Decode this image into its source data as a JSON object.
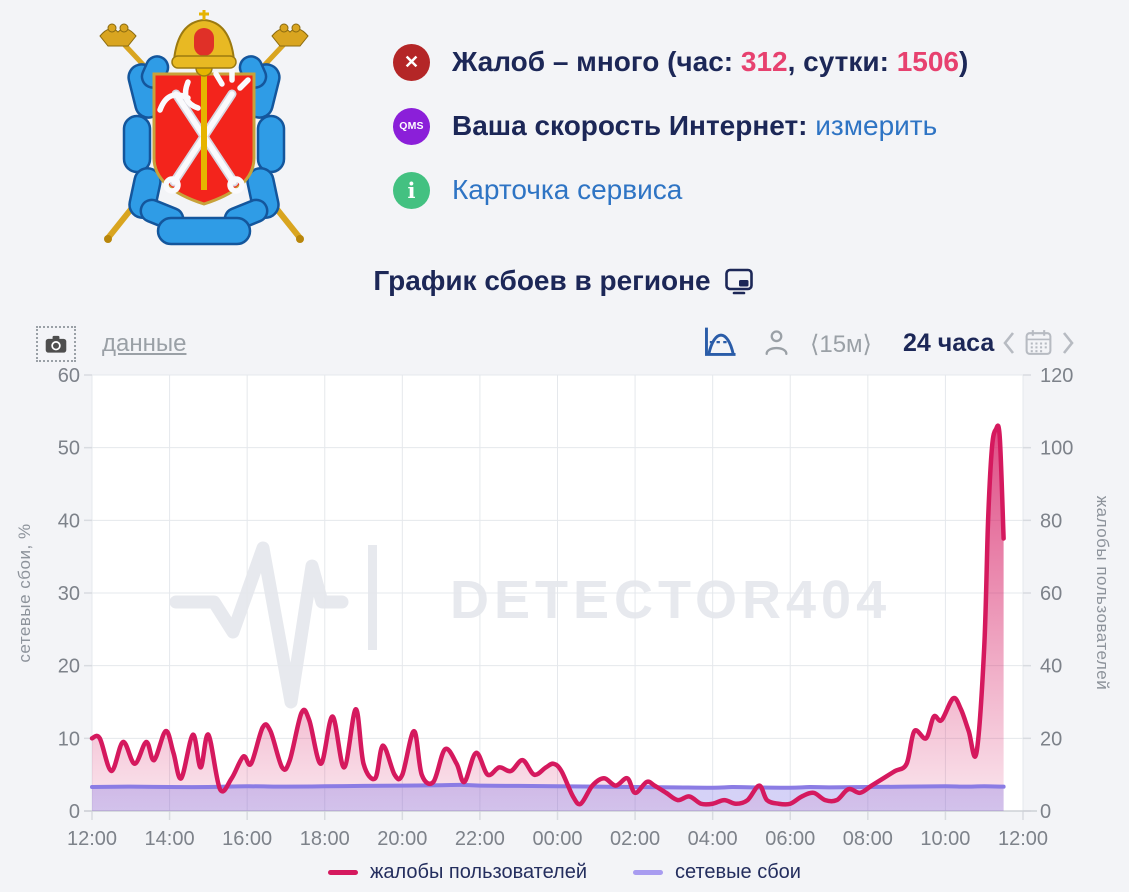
{
  "status": {
    "complaints": {
      "prefix": "Жалоб – много (час: ",
      "hour": "312",
      "mid": ", сутки: ",
      "day": "1506",
      "suffix": ")",
      "badge_icon": "✕"
    },
    "speed": {
      "label": "Ваша скорость Интернет: ",
      "link": "измерить",
      "badge": "QMS"
    },
    "card": {
      "link": "Карточка сервиса",
      "badge": "i"
    }
  },
  "controls": {
    "data_link": "данные",
    "interval": "⟨15м⟩",
    "range": "24 часа"
  },
  "legend": [
    {
      "label": "жалобы пользователей",
      "color": "#d5195e"
    },
    {
      "label": "сетевые сбои",
      "color": "#a89cf0"
    }
  ],
  "colors": {
    "navy": "#1c2757",
    "pink_accent": "#e7416f",
    "link_blue": "#2e74c4",
    "muted_gray": "#9aa0a6",
    "badge_red": "#b42627",
    "badge_purple": "#8b1fd9",
    "badge_green": "#43c181",
    "page_bg": "#f3f4f7",
    "plot_bg": "#ffffff",
    "grid": "#e5e8ec",
    "watermark": "#e7e9ee"
  },
  "chart_data": {
    "type": "line",
    "title": "График сбоев в регионе",
    "watermark": "DETECTOR404",
    "x_unit": "hours since 12:00",
    "x_labels": [
      "12:00",
      "14:00",
      "16:00",
      "18:00",
      "20:00",
      "22:00",
      "00:00",
      "02:00",
      "04:00",
      "06:00",
      "08:00",
      "10:00",
      "12:00"
    ],
    "left_axis": {
      "label": "сетевые сбои, %",
      "range": [
        0,
        60
      ],
      "ticks": [
        0,
        10,
        20,
        30,
        40,
        50,
        60
      ]
    },
    "right_axis": {
      "label": "жалобы пользователей",
      "range": [
        0,
        120
      ],
      "ticks": [
        0,
        20,
        40,
        60,
        80,
        100,
        120
      ]
    },
    "grid": true,
    "legend_position": "bottom",
    "series": [
      {
        "id": "complaints",
        "name": "жалобы пользователей",
        "axis": "right",
        "color": "#d5195e",
        "stroke_width": 4.5,
        "fill_top": "rgba(213,22,95,0.85)",
        "fill_bottom": "rgba(213,22,95,0.10)",
        "points": [
          [
            0,
            20
          ],
          [
            0.2,
            20
          ],
          [
            0.5,
            11
          ],
          [
            0.8,
            19
          ],
          [
            1.1,
            13
          ],
          [
            1.4,
            19
          ],
          [
            1.6,
            14
          ],
          [
            1.9,
            22
          ],
          [
            2.1,
            16
          ],
          [
            2.3,
            9
          ],
          [
            2.6,
            21
          ],
          [
            2.8,
            12
          ],
          [
            3.0,
            21
          ],
          [
            3.3,
            6
          ],
          [
            3.6,
            9
          ],
          [
            3.9,
            15
          ],
          [
            4.1,
            13
          ],
          [
            4.4,
            23
          ],
          [
            4.6,
            22
          ],
          [
            4.9,
            12
          ],
          [
            5.1,
            14
          ],
          [
            5.4,
            27
          ],
          [
            5.6,
            25
          ],
          [
            5.9,
            13
          ],
          [
            6.2,
            26
          ],
          [
            6.5,
            12
          ],
          [
            6.8,
            28
          ],
          [
            7.0,
            13
          ],
          [
            7.3,
            9
          ],
          [
            7.5,
            18
          ],
          [
            7.8,
            10
          ],
          [
            8.0,
            10
          ],
          [
            8.3,
            22
          ],
          [
            8.5,
            10
          ],
          [
            8.8,
            8
          ],
          [
            9.1,
            17
          ],
          [
            9.4,
            13
          ],
          [
            9.6,
            8
          ],
          [
            9.9,
            16
          ],
          [
            10.2,
            10
          ],
          [
            10.5,
            12
          ],
          [
            10.8,
            11
          ],
          [
            11.1,
            14
          ],
          [
            11.4,
            10
          ],
          [
            11.7,
            12
          ],
          [
            11.9,
            13
          ],
          [
            12.1,
            11
          ],
          [
            12.4,
            4
          ],
          [
            12.6,
            2
          ],
          [
            12.9,
            7
          ],
          [
            13.2,
            9
          ],
          [
            13.5,
            7
          ],
          [
            13.8,
            9
          ],
          [
            14.0,
            5
          ],
          [
            14.3,
            8
          ],
          [
            14.5,
            7
          ],
          [
            14.8,
            5
          ],
          [
            15.1,
            3
          ],
          [
            15.4,
            4
          ],
          [
            15.7,
            2
          ],
          [
            16.0,
            2
          ],
          [
            16.3,
            3
          ],
          [
            16.6,
            2
          ],
          [
            16.9,
            3
          ],
          [
            17.2,
            7
          ],
          [
            17.4,
            3
          ],
          [
            17.7,
            2
          ],
          [
            18.0,
            2
          ],
          [
            18.3,
            4
          ],
          [
            18.6,
            5
          ],
          [
            18.9,
            3
          ],
          [
            19.2,
            3
          ],
          [
            19.5,
            6
          ],
          [
            19.8,
            5
          ],
          [
            20.1,
            7
          ],
          [
            20.4,
            9
          ],
          [
            20.7,
            11
          ],
          [
            21.0,
            13
          ],
          [
            21.2,
            22
          ],
          [
            21.5,
            20
          ],
          [
            21.7,
            26
          ],
          [
            21.9,
            25
          ],
          [
            22.2,
            31
          ],
          [
            22.4,
            28
          ],
          [
            22.6,
            22
          ],
          [
            22.8,
            16
          ],
          [
            23.0,
            45
          ],
          [
            23.1,
            80
          ],
          [
            23.2,
            100
          ],
          [
            23.3,
            105
          ],
          [
            23.4,
            103
          ],
          [
            23.5,
            75
          ]
        ]
      },
      {
        "id": "failures",
        "name": "сетевые сбои",
        "axis": "left",
        "color": "#8b7ce4",
        "stroke_width": 4,
        "fill_top": "rgba(108,99,224,0.42)",
        "fill_bottom": "rgba(118,108,228,0.30)",
        "points": [
          [
            0,
            3.3
          ],
          [
            1,
            3.35
          ],
          [
            2,
            3.3
          ],
          [
            3,
            3.3
          ],
          [
            4,
            3.4
          ],
          [
            5,
            3.35
          ],
          [
            6,
            3.4
          ],
          [
            7,
            3.45
          ],
          [
            8,
            3.5
          ],
          [
            9,
            3.55
          ],
          [
            9.5,
            3.6
          ],
          [
            10,
            3.5
          ],
          [
            11,
            3.45
          ],
          [
            12,
            3.4
          ],
          [
            13,
            3.35
          ],
          [
            14,
            3.3
          ],
          [
            15,
            3.25
          ],
          [
            16,
            3.2
          ],
          [
            16.5,
            3.3
          ],
          [
            17,
            3.25
          ],
          [
            18,
            3.2
          ],
          [
            18.5,
            3.3
          ],
          [
            19,
            3.25
          ],
          [
            20,
            3.3
          ],
          [
            21,
            3.35
          ],
          [
            22,
            3.4
          ],
          [
            22.5,
            3.35
          ],
          [
            23,
            3.4
          ],
          [
            23.5,
            3.35
          ]
        ]
      }
    ]
  }
}
